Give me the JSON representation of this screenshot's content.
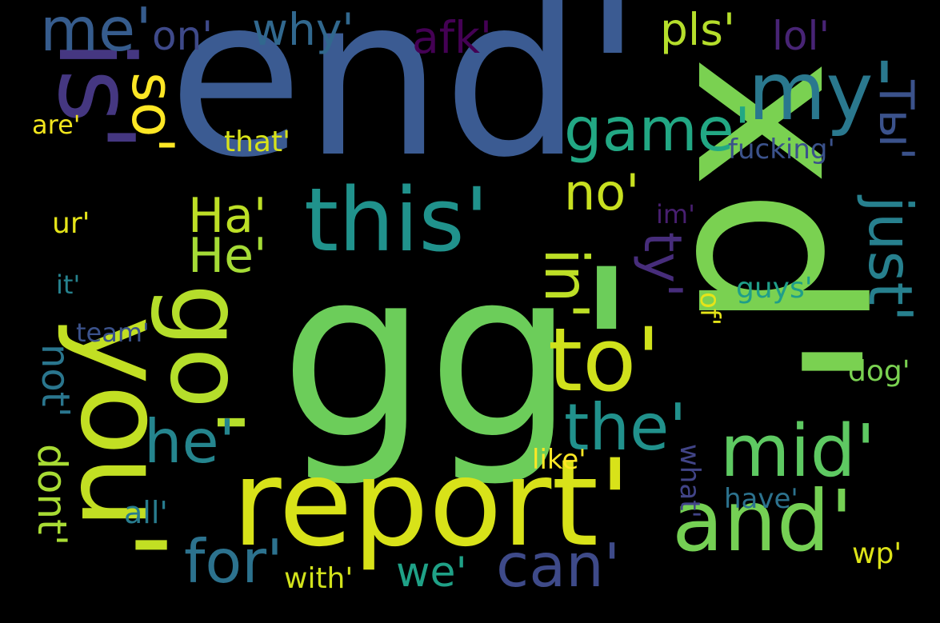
{
  "words": [
    {
      "id": "end",
      "text": "end'",
      "color": "#3b5b92",
      "vertical": false
    },
    {
      "id": "gg",
      "text": "gg'",
      "color": "#6ccd5a",
      "vertical": false
    },
    {
      "id": "xd",
      "text": "xd'",
      "color": "#7ad151",
      "vertical": true
    },
    {
      "id": "report",
      "text": "report'",
      "color": "#d8e219",
      "vertical": false
    },
    {
      "id": "you",
      "text": "you'",
      "color": "#c2df23",
      "vertical": true
    },
    {
      "id": "is",
      "text": "is'",
      "color": "#453781",
      "vertical": true
    },
    {
      "id": "this",
      "text": "this'",
      "color": "#20928c",
      "vertical": false
    },
    {
      "id": "to",
      "text": "to'",
      "color": "#d0e11c",
      "vertical": false
    },
    {
      "id": "and",
      "text": "and'",
      "color": "#75d054",
      "vertical": false
    },
    {
      "id": "mid",
      "text": "mid'",
      "color": "#5ec962",
      "vertical": false
    },
    {
      "id": "go",
      "text": "go'",
      "color": "#b5de2b",
      "vertical": true
    },
    {
      "id": "my",
      "text": "my'",
      "color": "#2a788e",
      "vertical": false
    },
    {
      "id": "game",
      "text": "game'",
      "color": "#22a884",
      "vertical": false
    },
    {
      "id": "the",
      "text": "the'",
      "color": "#21918c",
      "vertical": false
    },
    {
      "id": "can",
      "text": "can'",
      "color": "#3e4a89",
      "vertical": false
    },
    {
      "id": "for",
      "text": "for'",
      "color": "#2c728e",
      "vertical": false
    },
    {
      "id": "he",
      "text": "he'",
      "color": "#25858e",
      "vertical": false
    },
    {
      "id": "me",
      "text": "me'",
      "color": "#365c8d",
      "vertical": false
    },
    {
      "id": "in",
      "text": "in'",
      "color": "#bddf26",
      "vertical": true
    },
    {
      "id": "no",
      "text": "no'",
      "color": "#c8e020",
      "vertical": false
    },
    {
      "id": "ty",
      "text": "ty'",
      "color": "#472d7b",
      "vertical": true
    },
    {
      "id": "just",
      "text": "just'",
      "color": "#27808e",
      "vertical": true
    },
    {
      "id": "tyru",
      "text": "Ты'",
      "color": "#3b528b",
      "vertical": true
    },
    {
      "id": "why",
      "text": "why'",
      "color": "#31688e",
      "vertical": false
    },
    {
      "id": "on",
      "text": "on'",
      "color": "#3e4989",
      "vertical": false
    },
    {
      "id": "afk",
      "text": "afk'",
      "color": "#440154",
      "vertical": false
    },
    {
      "id": "pls",
      "text": "pls'",
      "color": "#b5de2b",
      "vertical": false
    },
    {
      "id": "lol",
      "text": "lol'",
      "color": "#482475",
      "vertical": false
    },
    {
      "id": "so",
      "text": "so'",
      "color": "#fde725",
      "vertical": true
    },
    {
      "id": "na",
      "text": "На'",
      "color": "#bddf26",
      "vertical": false
    },
    {
      "id": "ne",
      "text": "Не'",
      "color": "#a5db36",
      "vertical": false
    },
    {
      "id": "dont",
      "text": "dont'",
      "color": "#a8db34",
      "vertical": true
    },
    {
      "id": "not",
      "text": "not'",
      "color": "#2a768e",
      "vertical": true
    },
    {
      "id": "team",
      "text": "team'",
      "color": "#3b528b",
      "vertical": false
    },
    {
      "id": "it",
      "text": "it'",
      "color": "#26828e",
      "vertical": false
    },
    {
      "id": "ur",
      "text": "ur'",
      "color": "#e5e419",
      "vertical": false
    },
    {
      "id": "are",
      "text": "are'",
      "color": "#f1e51d",
      "vertical": false
    },
    {
      "id": "that",
      "text": "that'",
      "color": "#d8e219",
      "vertical": false
    },
    {
      "id": "fucking",
      "text": "fucking'",
      "color": "#3b528b",
      "vertical": false
    },
    {
      "id": "im",
      "text": "im'",
      "color": "#481f70",
      "vertical": false
    },
    {
      "id": "guys",
      "text": "guys'",
      "color": "#1f9e89",
      "vertical": false
    },
    {
      "id": "of",
      "text": "of'",
      "color": "#e5e419",
      "vertical": true
    },
    {
      "id": "dog",
      "text": "dog'",
      "color": "#7ad151",
      "vertical": false
    },
    {
      "id": "like",
      "text": "like'",
      "color": "#fde725",
      "vertical": false
    },
    {
      "id": "what",
      "text": "what'",
      "color": "#414487",
      "vertical": true
    },
    {
      "id": "have",
      "text": "have'",
      "color": "#2c728e",
      "vertical": false
    },
    {
      "id": "all",
      "text": "all'",
      "color": "#287c8e",
      "vertical": false
    },
    {
      "id": "with",
      "text": "with'",
      "color": "#d2e21b",
      "vertical": false
    },
    {
      "id": "we",
      "text": "we'",
      "color": "#1fa187",
      "vertical": false
    },
    {
      "id": "wp",
      "text": "wp'",
      "color": "#dde318",
      "vertical": false
    }
  ]
}
